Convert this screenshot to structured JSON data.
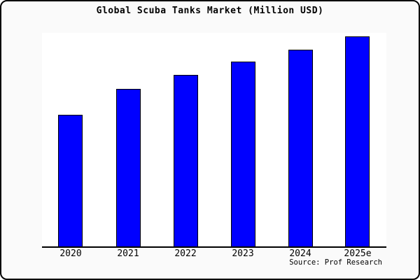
{
  "window": {
    "background_color": "#fafafa",
    "plot_background_color": "#ffffff",
    "border_color": "#000000"
  },
  "chart_data": {
    "type": "bar",
    "title": "Global Scuba Tanks Market (Million USD)",
    "xlabel": "",
    "ylabel": "",
    "categories": [
      "2020",
      "2021",
      "2022",
      "2023",
      "2024",
      "2025e"
    ],
    "values_relative_pct_of_max": [
      62.7,
      75.0,
      81.7,
      88.0,
      93.7,
      100.0
    ],
    "bar_height_pct_of_plot": [
      61.6,
      73.8,
      80.3,
      86.6,
      92.1,
      98.4
    ],
    "values_note": "y-axis has no tick labels or gridlines; values are relative bar heights (percent of tallest bar, 2025e = 100)",
    "y_axis_visible": false,
    "gridlines": false,
    "legend": null,
    "bar_color": "#0000ff",
    "bar_edge_color": "#000000",
    "axis_line_color": "#000000"
  },
  "footer": {
    "source_label": "Source: Prof Research"
  }
}
